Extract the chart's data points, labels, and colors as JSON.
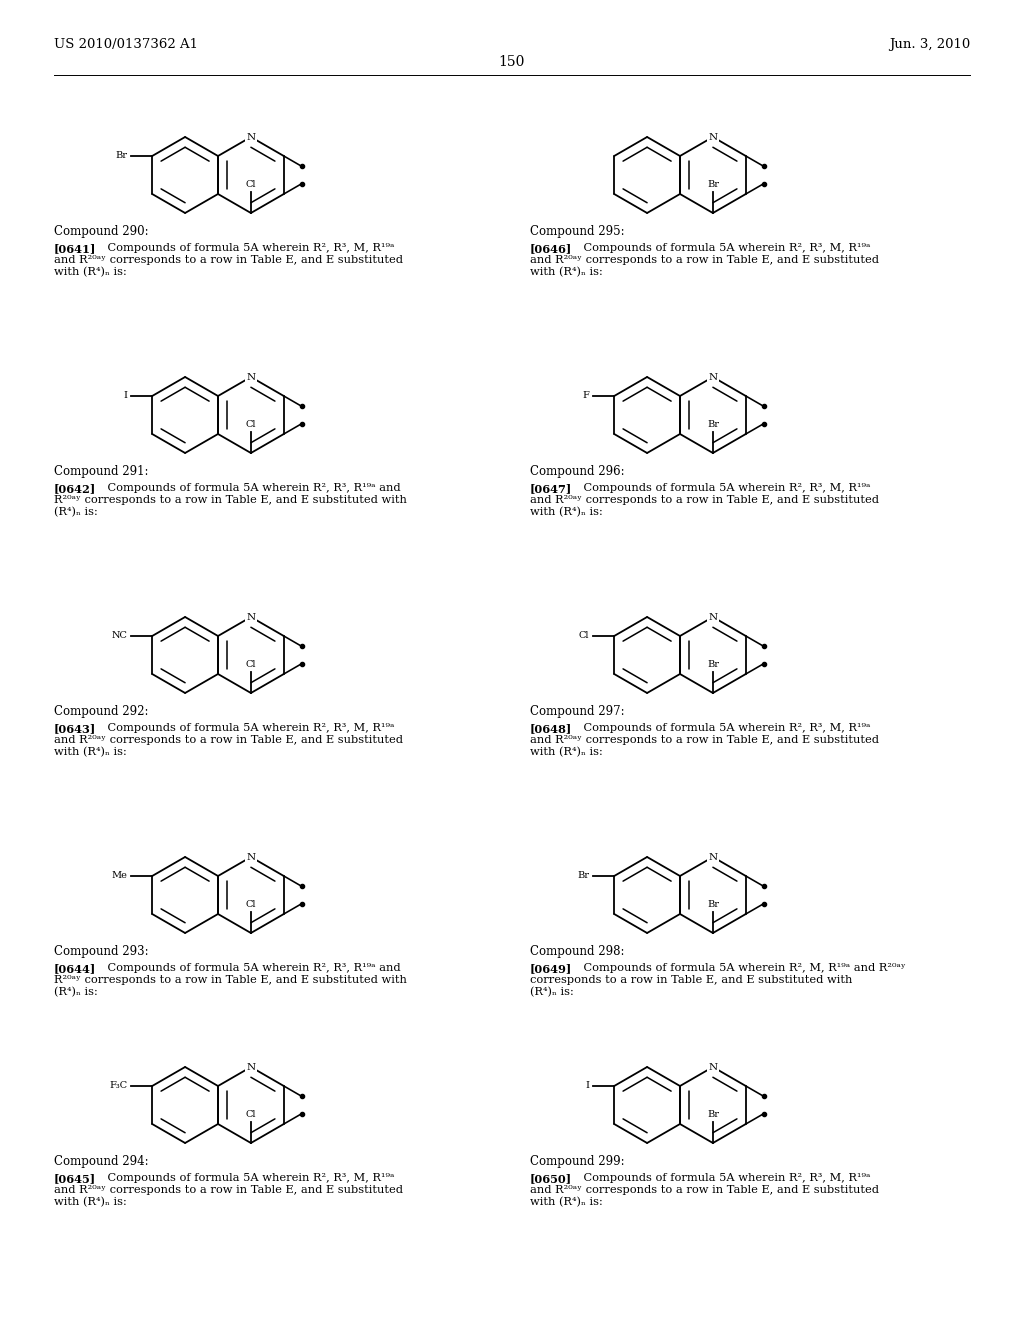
{
  "page_header_left": "US 2010/0137362 A1",
  "page_header_right": "Jun. 3, 2010",
  "page_number": "150",
  "bg": "#ffffff",
  "compounds": [
    {
      "num": "290",
      "ref": "[0641]",
      "left": "Br",
      "top": "Cl",
      "col": 0,
      "row": 0,
      "lines": [
        "Compounds of formula 5A wherein R², R³, M, R¹⁹ᵃ",
        "and R²⁰ᵃʸ corresponds to a row in Table E, and E substituted",
        "with (R⁴)ₙ is:"
      ]
    },
    {
      "num": "295",
      "ref": "[0646]",
      "left": null,
      "top": "Br",
      "col": 1,
      "row": 0,
      "lines": [
        "Compounds of formula 5A wherein R², R³, M, R¹⁹ᵃ",
        "and R²⁰ᵃʸ corresponds to a row in Table E, and E substituted",
        "with (R⁴)ₙ is:"
      ]
    },
    {
      "num": "291",
      "ref": "[0642]",
      "left": "I",
      "top": "Cl",
      "col": 0,
      "row": 1,
      "lines": [
        "Compounds of formula 5A wherein R², R³, R¹⁹ᵃ and",
        "R²⁰ᵃʸ corresponds to a row in Table E, and E substituted with",
        "(R⁴)ₙ is:"
      ]
    },
    {
      "num": "296",
      "ref": "[0647]",
      "left": "F",
      "top": "Br",
      "col": 1,
      "row": 1,
      "lines": [
        "Compounds of formula 5A wherein R², R³, M, R¹⁹ᵃ",
        "and R²⁰ᵃʸ corresponds to a row in Table E, and E substituted",
        "with (R⁴)ₙ is:"
      ]
    },
    {
      "num": "292",
      "ref": "[0643]",
      "left": "NC",
      "top": "Cl",
      "col": 0,
      "row": 2,
      "lines": [
        "Compounds of formula 5A wherein R², R³, M, R¹⁹ᵃ",
        "and R²⁰ᵃʸ corresponds to a row in Table E, and E substituted",
        "with (R⁴)ₙ is:"
      ]
    },
    {
      "num": "297",
      "ref": "[0648]",
      "left": "Cl",
      "top": "Br",
      "col": 1,
      "row": 2,
      "lines": [
        "Compounds of formula 5A wherein R², R³, M, R¹⁹ᵃ",
        "and R²⁰ᵃʸ corresponds to a row in Table E, and E substituted",
        "with (R⁴)ₙ is:"
      ]
    },
    {
      "num": "293",
      "ref": "[0644]",
      "left": "Me",
      "top": "Cl",
      "col": 0,
      "row": 3,
      "lines": [
        "Compounds of formula 5A wherein R², R³, R¹⁹ᵃ and",
        "R²⁰ᵃʸ corresponds to a row in Table E, and E substituted with",
        "(R⁴)ₙ is:"
      ]
    },
    {
      "num": "298",
      "ref": "[0649]",
      "left": "Br",
      "top": "Br",
      "col": 1,
      "row": 3,
      "lines": [
        "Compounds of formula 5A wherein R², M, R¹⁹ᵃ and R²⁰ᵃʸ",
        "corresponds to a row in Table E, and E substituted with",
        "(R⁴)ₙ is:"
      ]
    },
    {
      "num": "294",
      "ref": "[0645]",
      "left": "F₃C",
      "top": "Cl",
      "col": 0,
      "row": 4,
      "lines": [
        "Compounds of formula 5A wherein R², R³, M, R¹⁹ᵃ",
        "and R²⁰ᵃʸ corresponds to a row in Table E, and E substituted",
        "with (R⁴)ₙ is:"
      ]
    },
    {
      "num": "299",
      "ref": "[0650]",
      "left": "I",
      "top": "Br",
      "col": 1,
      "row": 4,
      "lines": [
        "Compounds of formula 5A wherein R², R³, M, R¹⁹ᵃ",
        "and R²⁰ᵃʸ corresponds to a row in Table E, and E substituted",
        "with (R⁴)ₙ is:"
      ]
    }
  ]
}
